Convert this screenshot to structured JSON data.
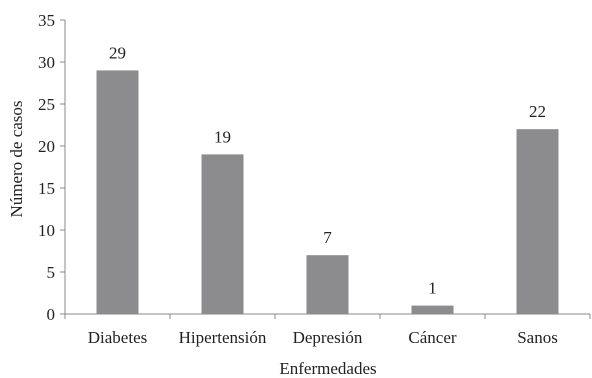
{
  "chart_data": {
    "type": "bar",
    "categories": [
      "Diabetes",
      "Hipertensión",
      "Depresión",
      "Cáncer",
      "Sanos"
    ],
    "values": [
      29,
      19,
      7,
      1,
      22
    ],
    "data_labels": [
      "29",
      "19",
      "7",
      "1",
      "22"
    ],
    "xlabel": "Enfermedades",
    "ylabel": "Número de casos",
    "ylim": [
      0,
      35
    ],
    "yticks": [
      0,
      5,
      10,
      15,
      20,
      25,
      30,
      35
    ],
    "ytick_labels": [
      "0",
      "5",
      "10",
      "15",
      "20",
      "25",
      "30",
      "35"
    ],
    "grid": false,
    "legend": "none",
    "bar_color": "#8c8c8e",
    "axis_color": "#888888"
  }
}
